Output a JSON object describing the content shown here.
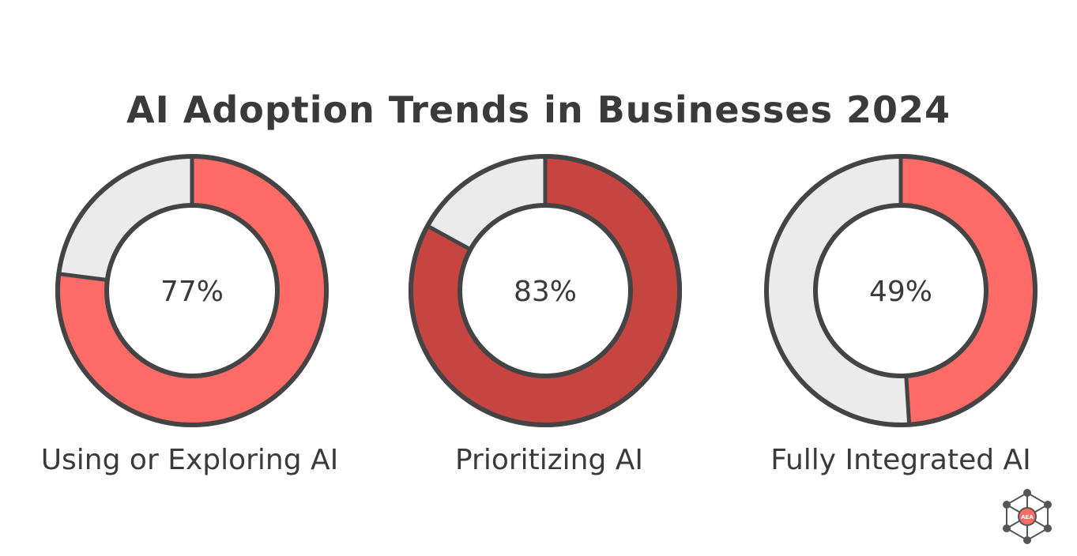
{
  "title": "AI Adoption Trends in Businesses 2024",
  "chart_data": {
    "type": "pie",
    "title": "AI Adoption Trends in Businesses 2024",
    "unit": "%",
    "items": [
      {
        "label": "Using or Exploring AI",
        "value": 77,
        "display": "77%",
        "color": "#ff6b66"
      },
      {
        "label": "Prioritizing AI",
        "value": 83,
        "display": "83%",
        "color": "#c64541"
      },
      {
        "label": "Fully Integrated AI",
        "value": 49,
        "display": "49%",
        "color": "#ff6b66"
      }
    ],
    "remainder_color": "#ebebeb",
    "outline_color": "#444444"
  },
  "logo": {
    "text": "AEA",
    "icon": "molecule-network-icon",
    "color": "#ff6b66"
  }
}
